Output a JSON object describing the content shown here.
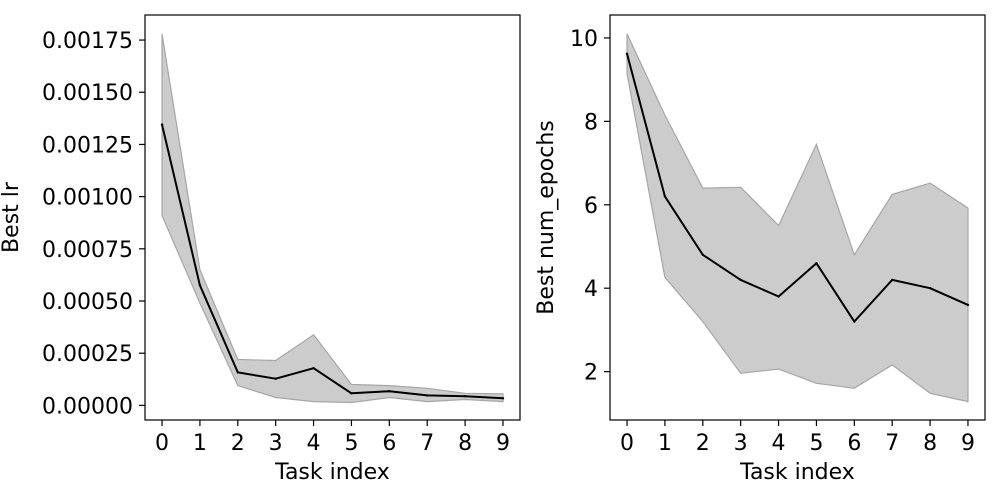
{
  "chart_data": [
    {
      "type": "line",
      "xlabel": "Task index",
      "ylabel": "Best lr",
      "xlim": [
        -0.45,
        9.45
      ],
      "ylim": [
        -7e-05,
        0.00187
      ],
      "xticks": [
        0,
        1,
        2,
        3,
        4,
        5,
        6,
        7,
        8,
        9
      ],
      "xtick_labels": [
        "0",
        "1",
        "2",
        "3",
        "4",
        "5",
        "6",
        "7",
        "8",
        "9"
      ],
      "yticks": [
        0,
        0.00025,
        0.0005,
        0.00075,
        0.001,
        0.00125,
        0.0015,
        0.00175
      ],
      "ytick_labels": [
        "0.00000",
        "0.00025",
        "0.00050",
        "0.00075",
        "0.00100",
        "0.00125",
        "0.00150",
        "0.00175"
      ],
      "x": [
        0,
        1,
        2,
        3,
        4,
        5,
        6,
        7,
        8,
        9
      ],
      "series": [
        {
          "values": [
            0.001345,
            0.000575,
            0.000158,
            0.000128,
            0.000178,
            5.8e-05,
            6.8e-05,
            4.8e-05,
            4.4e-05,
            3.4e-05
          ],
          "band_upper": [
            0.00178,
            0.00065,
            0.00022,
            0.000215,
            0.000338,
            0.0001,
            9.5e-05,
            8.2e-05,
            5.8e-05,
            5.5e-05
          ],
          "band_lower": [
            0.00091,
            0.00049,
            9.5e-05,
            3.8e-05,
            1.8e-05,
            1.4e-05,
            3.8e-05,
            1.8e-05,
            2.8e-05,
            1.8e-05
          ],
          "line_color": "#000000",
          "band_color": "#cccccc",
          "band_edge_color": "#a6a6a6"
        }
      ],
      "grid": false,
      "legend": "none"
    },
    {
      "type": "line",
      "xlabel": "Task index",
      "ylabel": "Best num_epochs",
      "xlim": [
        -0.45,
        9.45
      ],
      "ylim": [
        0.84,
        10.55
      ],
      "xticks": [
        0,
        1,
        2,
        3,
        4,
        5,
        6,
        7,
        8,
        9
      ],
      "xtick_labels": [
        "0",
        "1",
        "2",
        "3",
        "4",
        "5",
        "6",
        "7",
        "8",
        "9"
      ],
      "yticks": [
        2,
        4,
        6,
        8,
        10
      ],
      "ytick_labels": [
        "2",
        "4",
        "6",
        "8",
        "10"
      ],
      "x": [
        0,
        1,
        2,
        3,
        4,
        5,
        6,
        7,
        8,
        9
      ],
      "series": [
        {
          "values": [
            9.62,
            6.2,
            4.8,
            4.2,
            3.8,
            4.6,
            3.2,
            4.2,
            4.0,
            3.6
          ],
          "band_upper": [
            10.1,
            8.15,
            6.4,
            6.42,
            5.5,
            7.45,
            4.8,
            6.25,
            6.52,
            5.92
          ],
          "band_lower": [
            9.15,
            4.26,
            3.2,
            1.96,
            2.06,
            1.72,
            1.6,
            2.16,
            1.48,
            1.28
          ],
          "line_color": "#000000",
          "band_color": "#cccccc",
          "band_edge_color": "#a6a6a6"
        }
      ],
      "grid": false,
      "legend": "none"
    }
  ]
}
